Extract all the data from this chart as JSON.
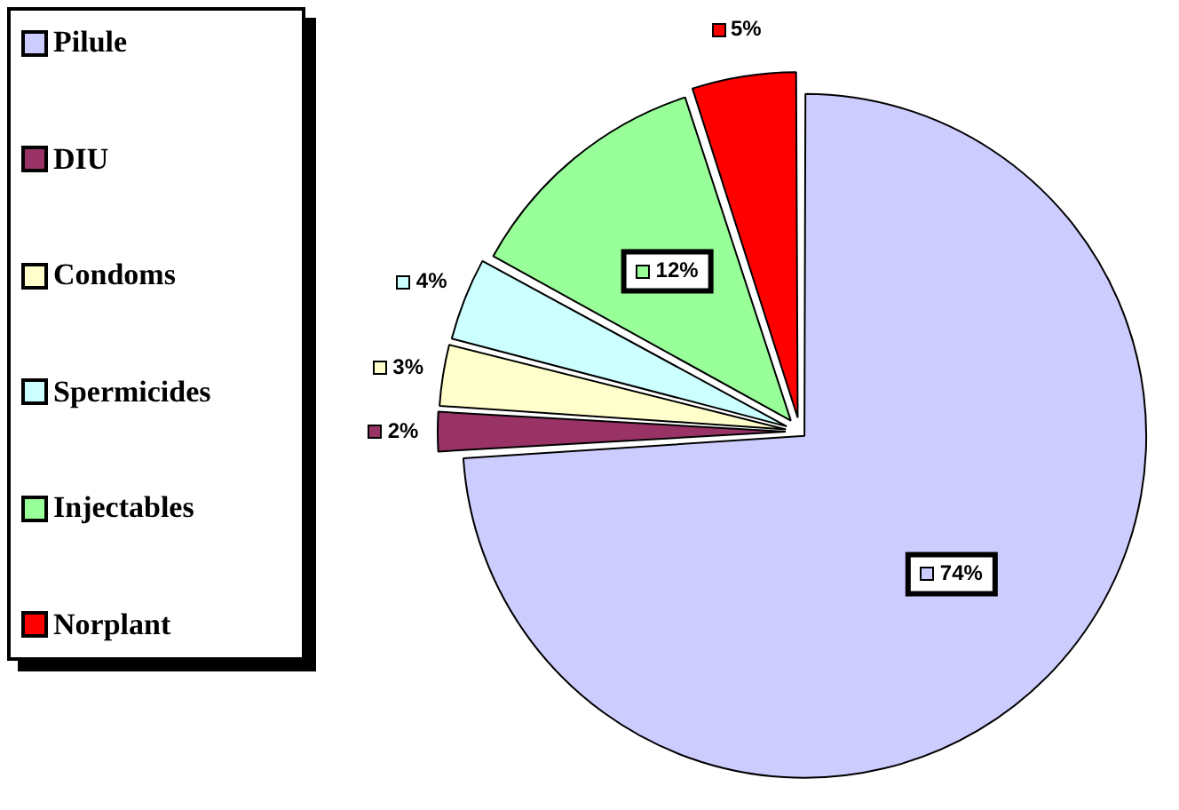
{
  "chart_data": {
    "type": "pie",
    "categories": [
      "Pilule",
      "DIU",
      "Condoms",
      "Spermicides",
      "Injectables",
      "Norplant"
    ],
    "values": [
      74,
      2,
      3,
      4,
      12,
      5
    ],
    "colors": [
      "#ccccff",
      "#993366",
      "#ffffcc",
      "#ccffff",
      "#99ff99",
      "#ff0000"
    ],
    "value_labels": [
      "74%",
      "2%",
      "3%",
      "4%",
      "12%",
      "5%"
    ],
    "legend": "left"
  }
}
